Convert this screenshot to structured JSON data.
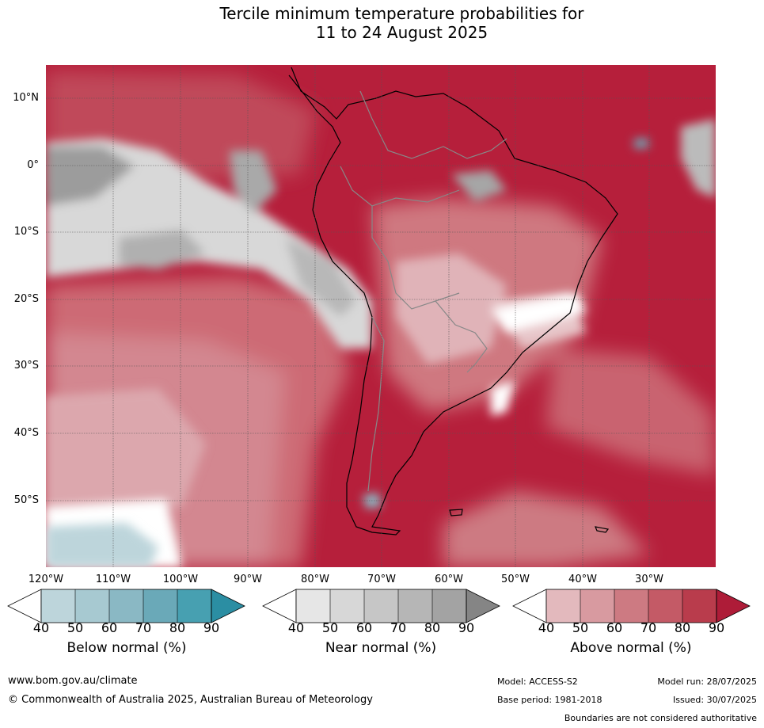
{
  "title": {
    "line1": "Tercile minimum temperature probabilities for",
    "line2": "11 to 24 August 2025"
  },
  "map": {
    "lat_labels": [
      "10°N",
      "0°",
      "10°S",
      "20°S",
      "30°S",
      "40°S",
      "50°S"
    ],
    "lon_labels": [
      "120°W",
      "110°W",
      "100°W",
      "90°W",
      "80°W",
      "70°W",
      "60°W",
      "50°W",
      "40°W",
      "30°W"
    ]
  },
  "legend": {
    "ticks": [
      "40",
      "50",
      "60",
      "70",
      "80",
      "90"
    ],
    "below": {
      "title": "Below normal (%)",
      "colors": [
        "#ffffff",
        "#bdd5db",
        "#a7c9d1",
        "#8ab8c4",
        "#6aa9b8",
        "#47a0b1",
        "#2b8ea3"
      ]
    },
    "near": {
      "title": "Near normal (%)",
      "colors": [
        "#ffffff",
        "#e6e6e6",
        "#d7d7d7",
        "#c6c6c6",
        "#b6b6b6",
        "#a3a3a3",
        "#858585"
      ]
    },
    "above": {
      "title": "Above normal (%)",
      "colors": [
        "#ffffff",
        "#e3b9bd",
        "#d89aa0",
        "#cd7a82",
        "#c45a66",
        "#b93c4c",
        "#ae1c38"
      ]
    }
  },
  "footer": {
    "website": "www.bom.gov.au/climate",
    "copyright": "© Commonwealth of Australia 2025, Australian Bureau of Meteorology",
    "model": "Model: ACCESS-S2",
    "model_run": "Model run: 28/07/2025",
    "base_period": "Base period: 1981-2018",
    "issued": "Issued: 30/07/2025",
    "disclaimer": "Boundaries are not considered authoritative"
  }
}
